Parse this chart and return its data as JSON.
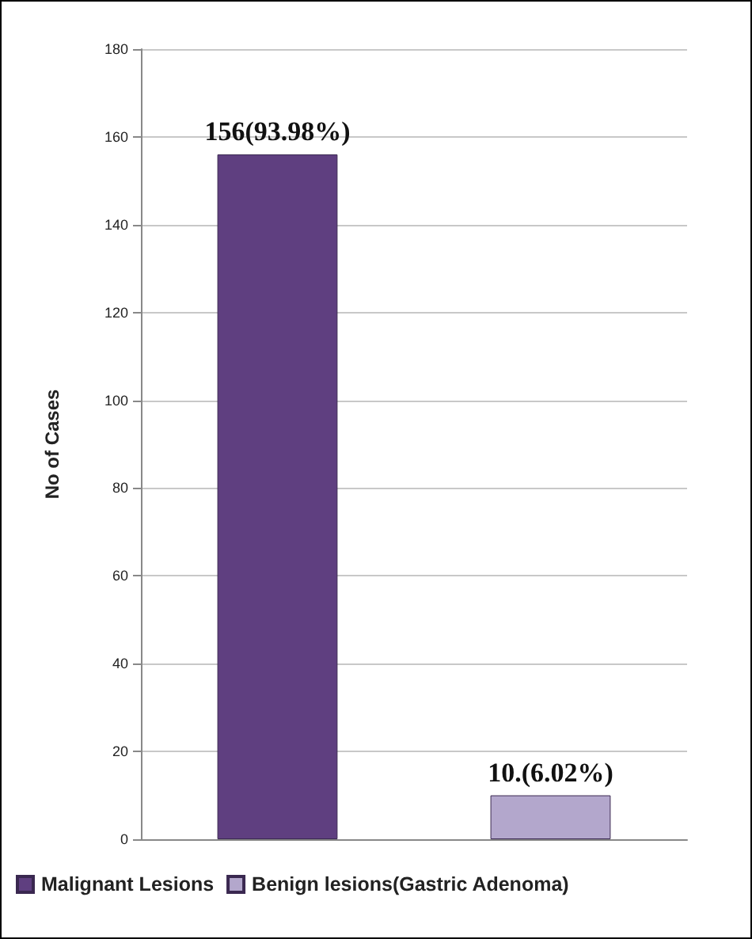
{
  "chart_data": {
    "type": "bar",
    "ylabel": "No of Cases",
    "categories": [
      null,
      null
    ],
    "series": [
      {
        "name": "Malignant Lesions",
        "color": "#5f3f80",
        "values": [
          156,
          null
        ],
        "value_labels": [
          "156(93.98%)",
          null
        ]
      },
      {
        "name": "Benign lesions(Gastric Adenoma)",
        "color": "#b3a7cc",
        "values": [
          null,
          10
        ],
        "value_labels": [
          null,
          "10.(6.02%)"
        ]
      }
    ],
    "ylim": [
      0,
      180
    ],
    "yticks": [
      0,
      20,
      40,
      60,
      80,
      100,
      120,
      140,
      160,
      180
    ],
    "grid": "y",
    "legend": "bottom"
  }
}
